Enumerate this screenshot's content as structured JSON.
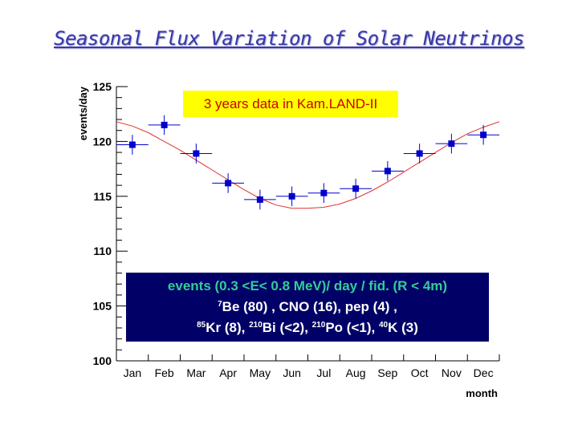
{
  "slide": {
    "title": "Seasonal Flux Variation of Solar Neutrinos"
  },
  "annotation_box": {
    "text": "3 years data in Kam.LAND-II"
  },
  "info_box": {
    "line1": "events (0.3 <E< 0.8 MeV)/ day / fid. (R < 4m)",
    "line2_parts": [
      {
        "sup": "7",
        "text": "Be (80) , CNO (16), pep (4) ,"
      }
    ],
    "line3_parts": [
      {
        "sup": "85",
        "text": "Kr (8), "
      },
      {
        "sup": "210",
        "text": "Bi (<2), "
      },
      {
        "sup": "210",
        "text": "Po (<1), "
      },
      {
        "sup": "40",
        "text": "K (3)"
      }
    ]
  },
  "chart_data": {
    "type": "scatter",
    "xlabel": "month",
    "ylabel": "events/day",
    "categories": [
      "Jan",
      "Feb",
      "Mar",
      "Apr",
      "May",
      "Jun",
      "Jul",
      "Aug",
      "Sep",
      "Oct",
      "Nov",
      "Dec"
    ],
    "ylim": [
      100,
      125
    ],
    "yticks": [
      100,
      105,
      110,
      115,
      120,
      125
    ],
    "grid": false,
    "series": [
      {
        "type": "scatter",
        "values": [
          119.7,
          121.5,
          118.9,
          116.2,
          114.7,
          115.0,
          115.3,
          115.7,
          117.3,
          118.9,
          119.8,
          120.6
        ],
        "yerr": [
          0.9,
          0.9,
          0.9,
          0.9,
          0.9,
          0.9,
          0.9,
          0.9,
          0.9,
          0.9,
          0.9,
          0.9
        ],
        "color": "#0000cc"
      },
      {
        "type": "line",
        "x": [
          0.0,
          0.5,
          1.0,
          1.5,
          2.0,
          2.5,
          3.0,
          3.5,
          4.0,
          4.5,
          5.0,
          5.5,
          6.0,
          6.5,
          7.0,
          7.5,
          8.0,
          8.5,
          9.0,
          9.5,
          10.0,
          10.5,
          11.0,
          11.5,
          12.0
        ],
        "values": [
          121.8,
          121.4,
          120.8,
          120.0,
          119.2,
          118.3,
          117.4,
          116.5,
          115.6,
          114.8,
          114.2,
          113.9,
          113.9,
          114.0,
          114.3,
          114.8,
          115.5,
          116.3,
          117.2,
          118.1,
          119.0,
          119.9,
          120.7,
          121.3,
          121.8
        ],
        "color": "#e03030"
      }
    ]
  }
}
